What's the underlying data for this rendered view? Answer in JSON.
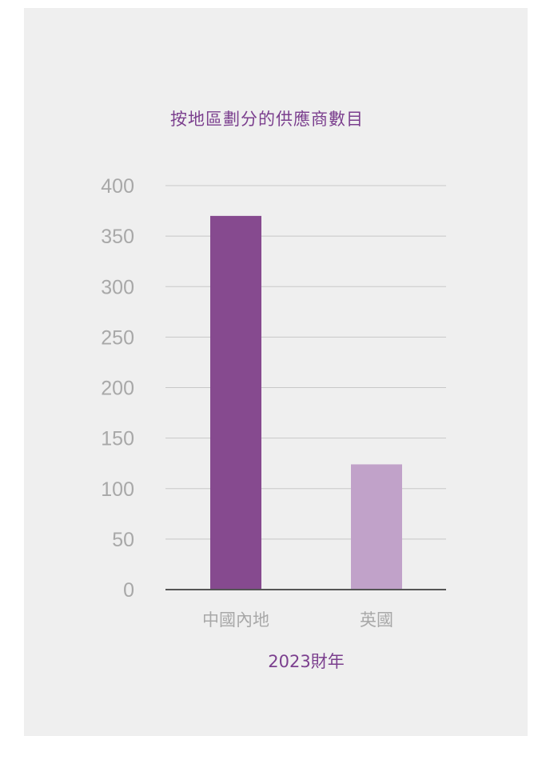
{
  "chart_data": {
    "type": "bar",
    "title": "按地區劃分的供應商數目",
    "categories": [
      "中國內地",
      "英國"
    ],
    "values": [
      370,
      124
    ],
    "xlabel": "2023財年",
    "ylabel": "",
    "ylim": [
      0,
      400
    ],
    "yticks": [
      0,
      50,
      100,
      150,
      200,
      250,
      300,
      350,
      400
    ],
    "bar_colors": [
      "#864a8f",
      "#c1a2c9"
    ],
    "grid": true,
    "legend": "none"
  },
  "colors": {
    "background": "#efefef",
    "title": "#7b3f8e",
    "axis_text": "#a8a8a8",
    "gridline": "#c8c8c8",
    "axis_line": "#555555"
  }
}
